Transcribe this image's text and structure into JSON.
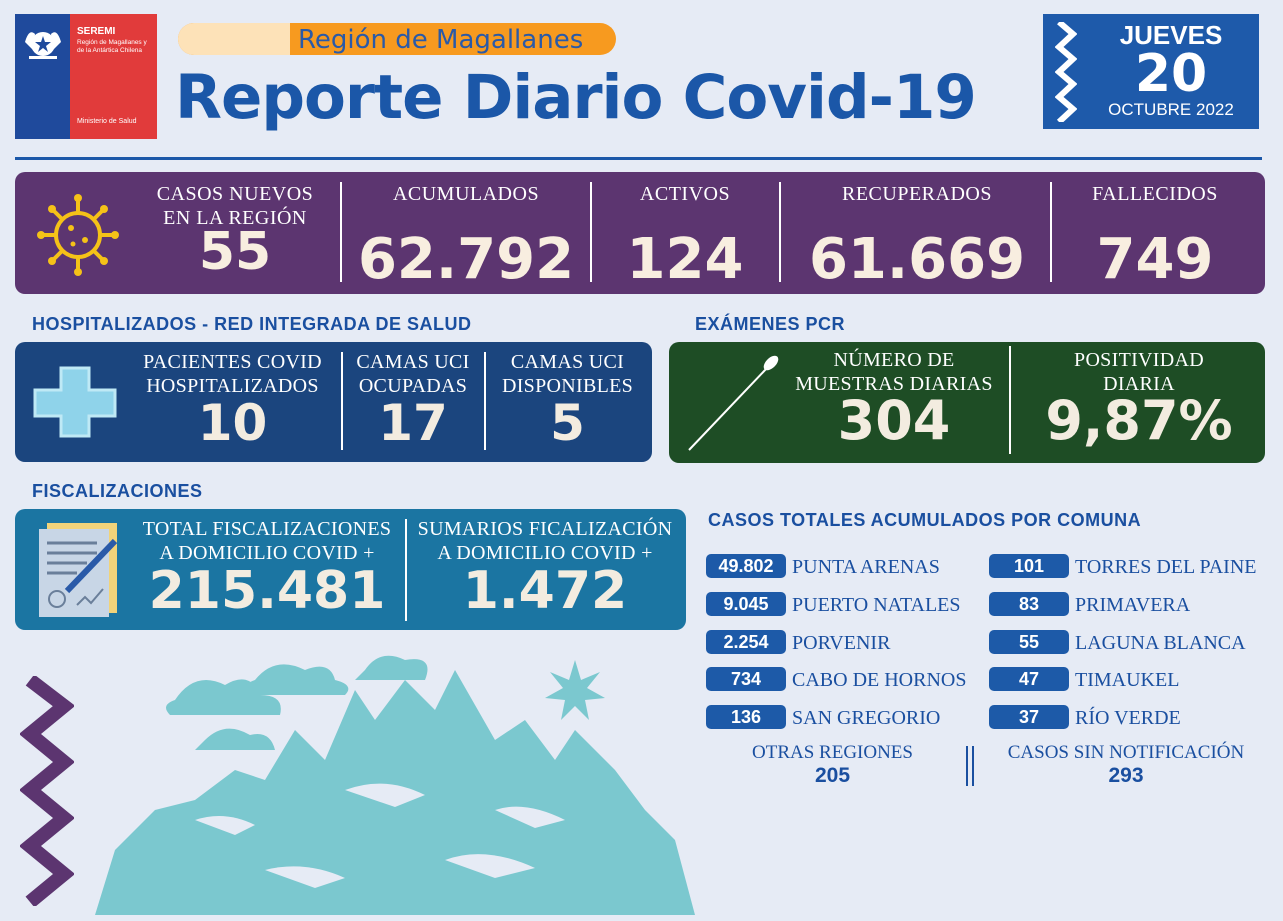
{
  "header": {
    "logo": {
      "org": "SEREMI",
      "region_line": "Región de Magallanes y de la Antártica Chilena",
      "ministry": "Ministerio de Salud"
    },
    "region_label": "Región de Magallanes",
    "title": "Reporte Diario Covid-19",
    "date": {
      "weekday": "JUEVES",
      "day": "20",
      "month_year": "OCTUBRE 2022"
    }
  },
  "colors": {
    "purple_bar": "#5c3570",
    "hospital_bar": "#1b457e",
    "pcr_bar": "#1e4d25",
    "fisc_bar": "#1b75a2",
    "accent_orange": "#f79a1f",
    "title_blue": "#1b57a8"
  },
  "cases": {
    "nuevos": {
      "label_1": "CASOS NUEVOS",
      "label_2": "EN LA REGIÓN",
      "value": "55"
    },
    "acumulados": {
      "label": "ACUMULADOS",
      "value": "62.792"
    },
    "activos": {
      "label": "ACTIVOS",
      "value": "124"
    },
    "recuperados": {
      "label": "RECUPERADOS",
      "value": "61.669"
    },
    "fallecidos": {
      "label": "FALLECIDOS",
      "value": "749"
    },
    "icon": "virus-icon"
  },
  "hospital": {
    "title": "HOSPITALIZADOS - RED INTEGRADA DE SALUD",
    "icon": "medical-cross-icon",
    "items": [
      {
        "label_1": "PACIENTES COVID",
        "label_2": "HOSPITALIZADOS",
        "value": "10"
      },
      {
        "label_1": "CAMAS UCI",
        "label_2": "OCUPADAS",
        "value": "17"
      },
      {
        "label_1": "CAMAS UCI",
        "label_2": "DISPONIBLES",
        "value": "5"
      }
    ]
  },
  "pcr": {
    "title": "EXÁMENES PCR",
    "icon": "swab-icon",
    "muestras": {
      "label_1": "NÚMERO DE",
      "label_2": "MUESTRAS DIARIAS",
      "value": "304"
    },
    "positividad": {
      "label_1": "POSITIVIDAD",
      "label_2": "DIARIA",
      "value": "9,87%"
    }
  },
  "fiscalizaciones": {
    "title": "FISCALIZACIONES",
    "icon": "clipboard-pen-icon",
    "total": {
      "label_1": "TOTAL FISCALIZACIONES",
      "label_2": "A DOMICILIO COVID +",
      "value": "215.481"
    },
    "sumarios": {
      "label_1": "SUMARIOS FICALIZACIÓN",
      "label_2": "A DOMICILIO COVID +",
      "value": "1.472"
    }
  },
  "comunas": {
    "title": "CASOS TOTALES ACUMULADOS POR COMUNA",
    "left": [
      {
        "value": "49.802",
        "name": "PUNTA ARENAS"
      },
      {
        "value": "9.045",
        "name": "PUERTO NATALES"
      },
      {
        "value": "2.254",
        "name": "PORVENIR"
      },
      {
        "value": "734",
        "name": "CABO DE HORNOS"
      },
      {
        "value": "136",
        "name": "SAN GREGORIO"
      }
    ],
    "right": [
      {
        "value": "101",
        "name": "TORRES DEL PAINE"
      },
      {
        "value": "83",
        "name": "PRIMAVERA"
      },
      {
        "value": "55",
        "name": "LAGUNA BLANCA"
      },
      {
        "value": "47",
        "name": "TIMAUKEL"
      },
      {
        "value": "37",
        "name": "RÍO VERDE"
      }
    ],
    "otras": {
      "label": "OTRAS REGIONES",
      "value": "205"
    },
    "sin_notificacion": {
      "label": "CASOS SIN NOTIFICACIÓN",
      "value": "293"
    }
  }
}
